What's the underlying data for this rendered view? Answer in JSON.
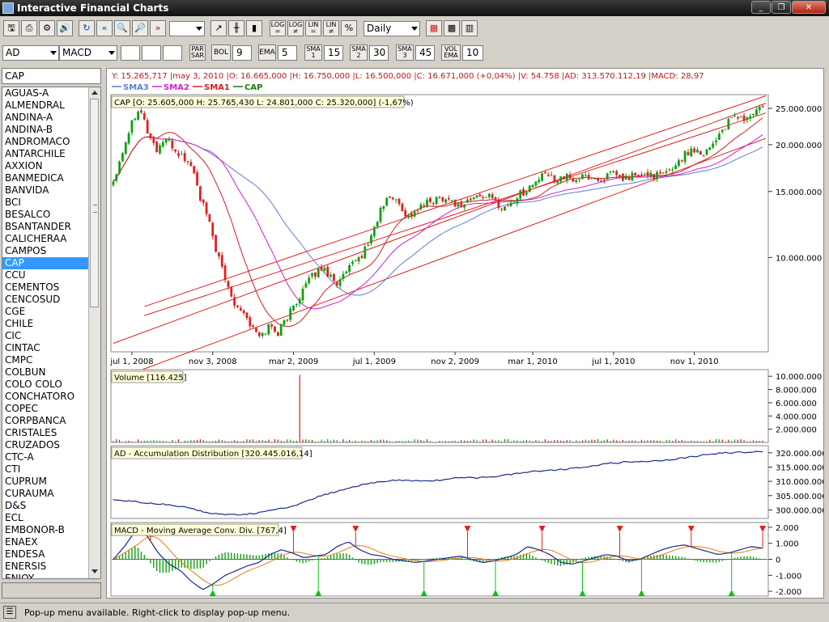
{
  "window": {
    "title": "Interactive Financial Charts",
    "controls": [
      "_",
      "❐",
      "✕"
    ]
  },
  "toolbar": {
    "buttons1": [
      "🖫",
      "⎙",
      "⚙",
      "🔊",
      "↻",
      "«",
      "🔍",
      "🔎",
      "»"
    ],
    "empty_combo": "",
    "buttons2": [
      "↗",
      "╫",
      "▮"
    ],
    "scale_buttons": [
      "LOG =",
      "LOG ≠",
      "LIN =",
      "LIN ≠",
      "%"
    ],
    "period": "Daily",
    "buttons3": [
      "▦",
      "▩",
      "▥"
    ]
  },
  "indicator_bar": {
    "indicator_a": "AD",
    "indicator_b": "MACD",
    "parsar": "PAR SAR",
    "bol": "BOL",
    "bol_value": "9",
    "ema": "EMA",
    "ema_value": "5",
    "sma1": "SMA 1",
    "sma1_value": "15",
    "sma2": "SMA 2",
    "sma2_value": "30",
    "sma3": "SMA 3",
    "sma3_value": "45",
    "volema": "VOL EMA",
    "volema_value": "10"
  },
  "sidebar": {
    "search_value": "CAP",
    "selected": "CAP",
    "items": [
      "AGUAS-A",
      "ALMENDRAL",
      "ANDINA-A",
      "ANDINA-B",
      "ANDROMACO",
      "ANTARCHILE",
      "AXXION",
      "BANMEDICA",
      "BANVIDA",
      "BCI",
      "BESALCO",
      "BSANTANDER",
      "CALICHERAA",
      "CAMPOS",
      "CAP",
      "CCU",
      "CEMENTOS",
      "CENCOSUD",
      "CGE",
      "CHILE",
      "CIC",
      "CINTAC",
      "CMPC",
      "COLBUN",
      "COLO COLO",
      "CONCHATORO",
      "COPEC",
      "CORPBANCA",
      "CRISTALES",
      "CRUZADOS",
      "CTC-A",
      "CTI",
      "CUPRUM",
      "CURAUMA",
      "D&S",
      "ECL",
      "EMBONOR-B",
      "ENAEX",
      "ENDESA",
      "ENERSIS",
      "ENJOY"
    ]
  },
  "info_line": "Y: 15.265,717 |may 3, 2010 |O: 16.665,000 |H: 16.750,000 |L: 16.500,000 |C: 16.671,000 (+0,04%) |V: 54.758 |AD: 313.570.112,19 |MACD: 28,97",
  "legend": [
    {
      "name": "SMA3",
      "color": "#5b7fd0"
    },
    {
      "name": "SMA2",
      "color": "#d020d0"
    },
    {
      "name": "SMA1",
      "color": "#d02020"
    },
    {
      "name": "CAP",
      "color": "#108010"
    }
  ],
  "status": {
    "text": "Pop-up menu available. Right-click to display pop-up menu."
  },
  "chart_data": [
    {
      "type": "candlestick",
      "title": "CAP [O: 25.605,000  H: 25.765,430  L: 24.801,000  C: 25.320,000] (-1,67%)",
      "y_scale": "log",
      "ylim": [
        5600,
        27200
      ],
      "y_ticks": [
        "25.000.000",
        "20.000.000",
        "15.000.000",
        "10.000.000"
      ],
      "y_tick_values": [
        25000,
        20000,
        15000,
        10000
      ],
      "x_ticks": [
        "jul 1, 2008",
        "nov 3, 2008",
        "mar 2, 2009",
        "jul 1, 2009",
        "nov 2, 2009",
        "mar 1, 2010",
        "jul 1, 2010",
        "nov 1, 2010"
      ],
      "x_tick_index": [
        6,
        32,
        58,
        84,
        110,
        135,
        161,
        187
      ],
      "series": [
        {
          "name": "CAP",
          "color": "#108010",
          "values": [
            16000,
            19000,
            22500,
            25500,
            21500,
            19300,
            20800,
            19500,
            18500,
            17700,
            14500,
            12500,
            10200,
            8600,
            7600,
            7200,
            6500,
            6100,
            6600,
            6300,
            6900,
            7500,
            8300,
            8900,
            9400,
            9000,
            8500,
            9200,
            9700,
            10400,
            11700,
            13600,
            14600,
            13900,
            12800,
            13300,
            13900,
            14200,
            14500,
            14200,
            13700,
            14200,
            14500,
            14700,
            14200,
            13500,
            14000,
            14800,
            15300,
            16100,
            16700,
            16200,
            16500,
            16100,
            16300,
            16500,
            16000,
            16500,
            16700,
            16100,
            16600,
            16400,
            16800,
            16500,
            16800,
            17800,
            18800,
            19600,
            18900,
            19800,
            21400,
            22800,
            23900,
            23200,
            24300,
            25300
          ]
        },
        {
          "name": "SMA1",
          "color": "#d02020"
        },
        {
          "name": "SMA2",
          "color": "#d020d0"
        },
        {
          "name": "SMA3",
          "color": "#5b7fd0"
        }
      ],
      "trend_lines": [
        {
          "from": [
            10,
            7400
          ],
          "to": [
            210,
            27000
          ]
        },
        {
          "from": [
            0,
            5900
          ],
          "to": [
            210,
            25800
          ]
        },
        {
          "from": [
            0,
            4700
          ],
          "to": [
            210,
            20800
          ]
        },
        {
          "from": [
            10,
            7000
          ],
          "to": [
            210,
            24300
          ]
        }
      ]
    },
    {
      "type": "bar",
      "title": "Volume [116.425]",
      "ylim": [
        0,
        11000000
      ],
      "y_ticks": [
        "10.000.000",
        "8.000.000",
        "6.000.000",
        "4.000.000",
        "2.000.000"
      ],
      "y_tick_values": [
        10000000,
        8000000,
        6000000,
        4000000,
        2000000
      ],
      "spike": {
        "index": 60,
        "value": 10200000
      }
    },
    {
      "type": "line",
      "title": "AD - Accumulation Distribution [320.445.016,14]",
      "ylim": [
        297000000,
        322500000
      ],
      "y_ticks": [
        "320.000.000",
        "315.000.000",
        "310.000.000",
        "305.000.000",
        "300.000.000"
      ],
      "y_tick_values": [
        320000000,
        315000000,
        310000000,
        305000000,
        300000000
      ],
      "series": [
        {
          "name": "AD",
          "color": "#1a2a8a",
          "values": [
            303500000,
            303000000,
            302200000,
            301800000,
            300600000,
            299000000,
            298300000,
            298500000,
            299400000,
            300700000,
            302600000,
            305300000,
            306900000,
            308700000,
            310000000,
            310400000,
            310100000,
            310400000,
            311200000,
            311200000,
            311800000,
            312600000,
            313600000,
            313900000,
            314500000,
            315400000,
            316300000,
            316800000,
            317000000,
            317500000,
            318300000,
            319300000,
            320000000,
            320200000,
            320400000
          ]
        }
      ]
    },
    {
      "type": "line",
      "title": "MACD - Moving Average Conv. Div. [767,4]",
      "ylim": [
        -2300,
        2300
      ],
      "y_ticks": [
        "2.000",
        "1.000",
        "0",
        "-1.000",
        "-2.000"
      ],
      "y_tick_values": [
        2000,
        1000,
        0,
        -1000,
        -2000
      ],
      "series": [
        {
          "name": "MACD",
          "color": "#1a2a8a",
          "values": [
            0,
            800,
            1800,
            1500,
            400,
            -300,
            -700,
            -1400,
            -1900,
            -1500,
            -1000,
            -700,
            -400,
            -200,
            300,
            600,
            400,
            100,
            200,
            300,
            800,
            1100,
            600,
            300,
            200,
            0,
            -100,
            -200,
            -100,
            0,
            100,
            200,
            0,
            -200,
            -100,
            100,
            300,
            800,
            600,
            300,
            -200,
            -300,
            -100,
            100,
            300,
            200,
            -100,
            0,
            300,
            600,
            800,
            900,
            700,
            500,
            300,
            400,
            600,
            800,
            700
          ]
        },
        {
          "name": "Signal",
          "color": "#e08010"
        }
      ]
    }
  ]
}
